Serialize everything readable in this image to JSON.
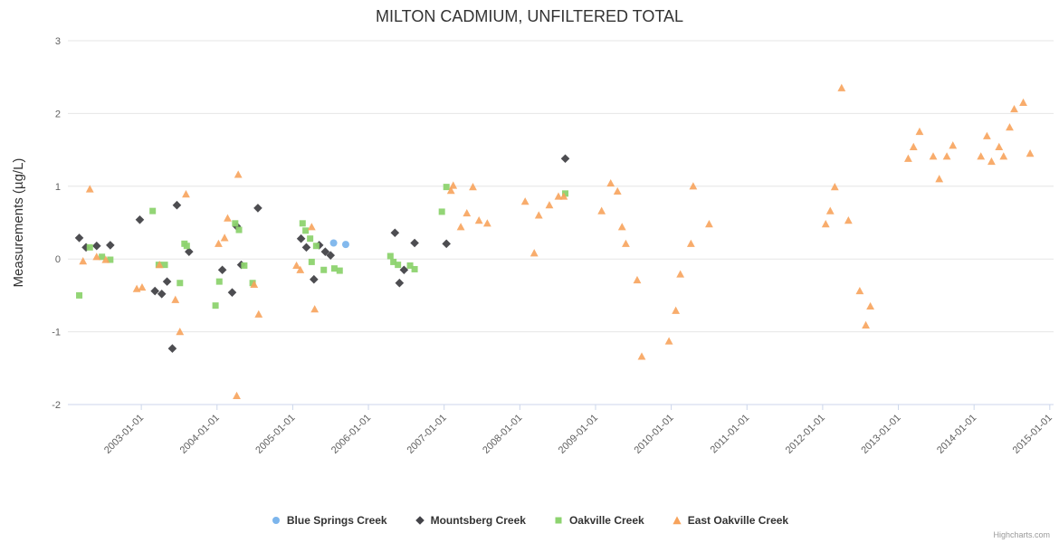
{
  "credit": "Highcharts.com",
  "chart_data": {
    "type": "scatter",
    "title": "MILTON CADMIUM, UNFILTERED TOTAL",
    "xlabel": "",
    "ylabel": "Measurements (µg/L)",
    "ylim": [
      -2,
      3
    ],
    "yticks": [
      -2,
      -1,
      0,
      1,
      2,
      3
    ],
    "xlim": [
      2002.03,
      2015.05
    ],
    "xticks": [
      2003,
      2004,
      2005,
      2006,
      2007,
      2008,
      2009,
      2010,
      2011,
      2012,
      2013,
      2014,
      2015
    ],
    "xtick_labels": [
      "2003-01-01",
      "2004-01-01",
      "2005-01-01",
      "2006-01-01",
      "2007-01-01",
      "2008-01-01",
      "2009-01-01",
      "2010-01-01",
      "2011-01-01",
      "2012-01-01",
      "2013-01-01",
      "2014-01-01",
      "2015-01-01"
    ],
    "grid": "horizontal",
    "legend_position": "bottom",
    "series": [
      {
        "name": "Blue Springs Creek",
        "color": "#7cb5ec",
        "marker": "circle",
        "points": [
          [
            2005.54,
            0.22
          ],
          [
            2005.7,
            0.2
          ]
        ]
      },
      {
        "name": "Mountsberg Creek",
        "color": "#434348",
        "marker": "diamond",
        "points": [
          [
            2002.18,
            0.29
          ],
          [
            2002.27,
            0.16
          ],
          [
            2002.41,
            0.18
          ],
          [
            2002.59,
            0.19
          ],
          [
            2002.98,
            0.54
          ],
          [
            2003.18,
            -0.44
          ],
          [
            2003.27,
            -0.48
          ],
          [
            2003.34,
            -0.31
          ],
          [
            2003.41,
            -1.23
          ],
          [
            2003.47,
            0.74
          ],
          [
            2003.63,
            0.1
          ],
          [
            2004.07,
            -0.15
          ],
          [
            2004.2,
            -0.46
          ],
          [
            2004.26,
            0.45
          ],
          [
            2004.32,
            -0.08
          ],
          [
            2004.54,
            0.7
          ],
          [
            2005.11,
            0.28
          ],
          [
            2005.18,
            0.16
          ],
          [
            2005.28,
            -0.28
          ],
          [
            2005.35,
            0.19
          ],
          [
            2005.43,
            0.1
          ],
          [
            2005.5,
            0.05
          ],
          [
            2006.35,
            0.36
          ],
          [
            2006.41,
            -0.33
          ],
          [
            2006.47,
            -0.15
          ],
          [
            2006.61,
            0.22
          ],
          [
            2007.03,
            0.21
          ],
          [
            2008.6,
            1.38
          ]
        ]
      },
      {
        "name": "Oakville Creek",
        "color": "#8dd36f",
        "marker": "square",
        "points": [
          [
            2002.18,
            -0.5
          ],
          [
            2002.32,
            0.16
          ],
          [
            2002.48,
            0.03
          ],
          [
            2002.59,
            -0.01
          ],
          [
            2003.15,
            0.66
          ],
          [
            2003.23,
            -0.08
          ],
          [
            2003.31,
            -0.08
          ],
          [
            2003.51,
            -0.33
          ],
          [
            2003.57,
            0.21
          ],
          [
            2003.6,
            0.18
          ],
          [
            2003.98,
            -0.64
          ],
          [
            2004.03,
            -0.31
          ],
          [
            2004.24,
            0.49
          ],
          [
            2004.29,
            0.4
          ],
          [
            2004.36,
            -0.09
          ],
          [
            2004.47,
            -0.33
          ],
          [
            2005.13,
            0.49
          ],
          [
            2005.17,
            0.39
          ],
          [
            2005.23,
            0.28
          ],
          [
            2005.25,
            -0.04
          ],
          [
            2005.31,
            0.18
          ],
          [
            2005.41,
            -0.15
          ],
          [
            2005.55,
            -0.13
          ],
          [
            2005.62,
            -0.16
          ],
          [
            2006.29,
            0.04
          ],
          [
            2006.33,
            -0.04
          ],
          [
            2006.39,
            -0.08
          ],
          [
            2006.55,
            -0.09
          ],
          [
            2006.61,
            -0.14
          ],
          [
            2006.97,
            0.65
          ],
          [
            2007.03,
            0.99
          ],
          [
            2008.6,
            0.9
          ]
        ]
      },
      {
        "name": "East Oakville Creek",
        "color": "#f7a35c",
        "marker": "triangle",
        "points": [
          [
            2002.23,
            -0.03
          ],
          [
            2002.32,
            0.96
          ],
          [
            2002.41,
            0.03
          ],
          [
            2002.53,
            -0.01
          ],
          [
            2002.94,
            -0.41
          ],
          [
            2003.01,
            -0.39
          ],
          [
            2003.24,
            -0.08
          ],
          [
            2003.45,
            -0.56
          ],
          [
            2003.51,
            -1.0
          ],
          [
            2003.59,
            0.89
          ],
          [
            2004.02,
            0.21
          ],
          [
            2004.1,
            0.29
          ],
          [
            2004.14,
            0.56
          ],
          [
            2004.26,
            -1.88
          ],
          [
            2004.28,
            1.16
          ],
          [
            2004.49,
            -0.35
          ],
          [
            2004.55,
            -0.76
          ],
          [
            2005.05,
            -0.09
          ],
          [
            2005.1,
            -0.15
          ],
          [
            2005.25,
            0.44
          ],
          [
            2005.29,
            -0.69
          ],
          [
            2007.09,
            0.94
          ],
          [
            2007.12,
            1.01
          ],
          [
            2007.22,
            0.44
          ],
          [
            2007.3,
            0.63
          ],
          [
            2007.38,
            0.99
          ],
          [
            2007.46,
            0.53
          ],
          [
            2007.57,
            0.49
          ],
          [
            2008.07,
            0.79
          ],
          [
            2008.19,
            0.08
          ],
          [
            2008.25,
            0.6
          ],
          [
            2008.39,
            0.74
          ],
          [
            2008.51,
            0.86
          ],
          [
            2008.58,
            0.86
          ],
          [
            2009.08,
            0.66
          ],
          [
            2009.2,
            1.04
          ],
          [
            2009.29,
            0.93
          ],
          [
            2009.35,
            0.44
          ],
          [
            2009.4,
            0.21
          ],
          [
            2009.55,
            -0.29
          ],
          [
            2009.61,
            -1.34
          ],
          [
            2009.97,
            -1.13
          ],
          [
            2010.06,
            -0.71
          ],
          [
            2010.12,
            -0.21
          ],
          [
            2010.26,
            0.21
          ],
          [
            2010.29,
            1.0
          ],
          [
            2010.5,
            0.48
          ],
          [
            2012.04,
            0.48
          ],
          [
            2012.1,
            0.66
          ],
          [
            2012.16,
            0.99
          ],
          [
            2012.25,
            2.35
          ],
          [
            2012.34,
            0.53
          ],
          [
            2012.49,
            -0.44
          ],
          [
            2012.57,
            -0.91
          ],
          [
            2012.63,
            -0.65
          ],
          [
            2013.13,
            1.38
          ],
          [
            2013.2,
            1.54
          ],
          [
            2013.28,
            1.75
          ],
          [
            2013.46,
            1.41
          ],
          [
            2013.54,
            1.1
          ],
          [
            2013.64,
            1.41
          ],
          [
            2013.72,
            1.56
          ],
          [
            2014.09,
            1.41
          ],
          [
            2014.17,
            1.69
          ],
          [
            2014.23,
            1.34
          ],
          [
            2014.33,
            1.54
          ],
          [
            2014.39,
            1.41
          ],
          [
            2014.47,
            1.81
          ],
          [
            2014.53,
            2.06
          ],
          [
            2014.65,
            2.15
          ],
          [
            2014.74,
            1.45
          ]
        ]
      }
    ]
  }
}
